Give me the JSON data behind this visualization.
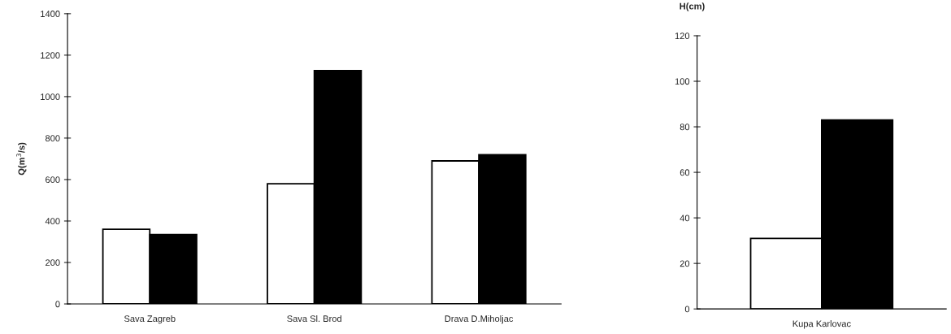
{
  "chart_data": [
    {
      "type": "bar",
      "ylabel": "Q(m$^{3}$/s)",
      "categories": [
        "Sava Zagreb",
        "Sava Sl. Brod",
        "Drava D.Miholjac"
      ],
      "series": [
        {
          "color": "#ffffff",
          "values": [
            360,
            580,
            690
          ]
        },
        {
          "color": "#000000",
          "values": [
            335,
            1125,
            720
          ]
        }
      ],
      "ylim": [
        0,
        1400
      ],
      "yticks": [
        0,
        200,
        400,
        600,
        800,
        1000,
        1200,
        1400
      ],
      "grid": false,
      "legend": false
    },
    {
      "type": "bar",
      "ylabel": "H(cm)",
      "categories": [
        "Kupa Karlovac"
      ],
      "series": [
        {
          "color": "#ffffff",
          "values": [
            31
          ]
        },
        {
          "color": "#000000",
          "values": [
            83
          ]
        }
      ],
      "ylim": [
        0,
        120
      ],
      "yticks": [
        0,
        20,
        40,
        60,
        80,
        100,
        120
      ],
      "grid": false,
      "legend": false
    }
  ]
}
